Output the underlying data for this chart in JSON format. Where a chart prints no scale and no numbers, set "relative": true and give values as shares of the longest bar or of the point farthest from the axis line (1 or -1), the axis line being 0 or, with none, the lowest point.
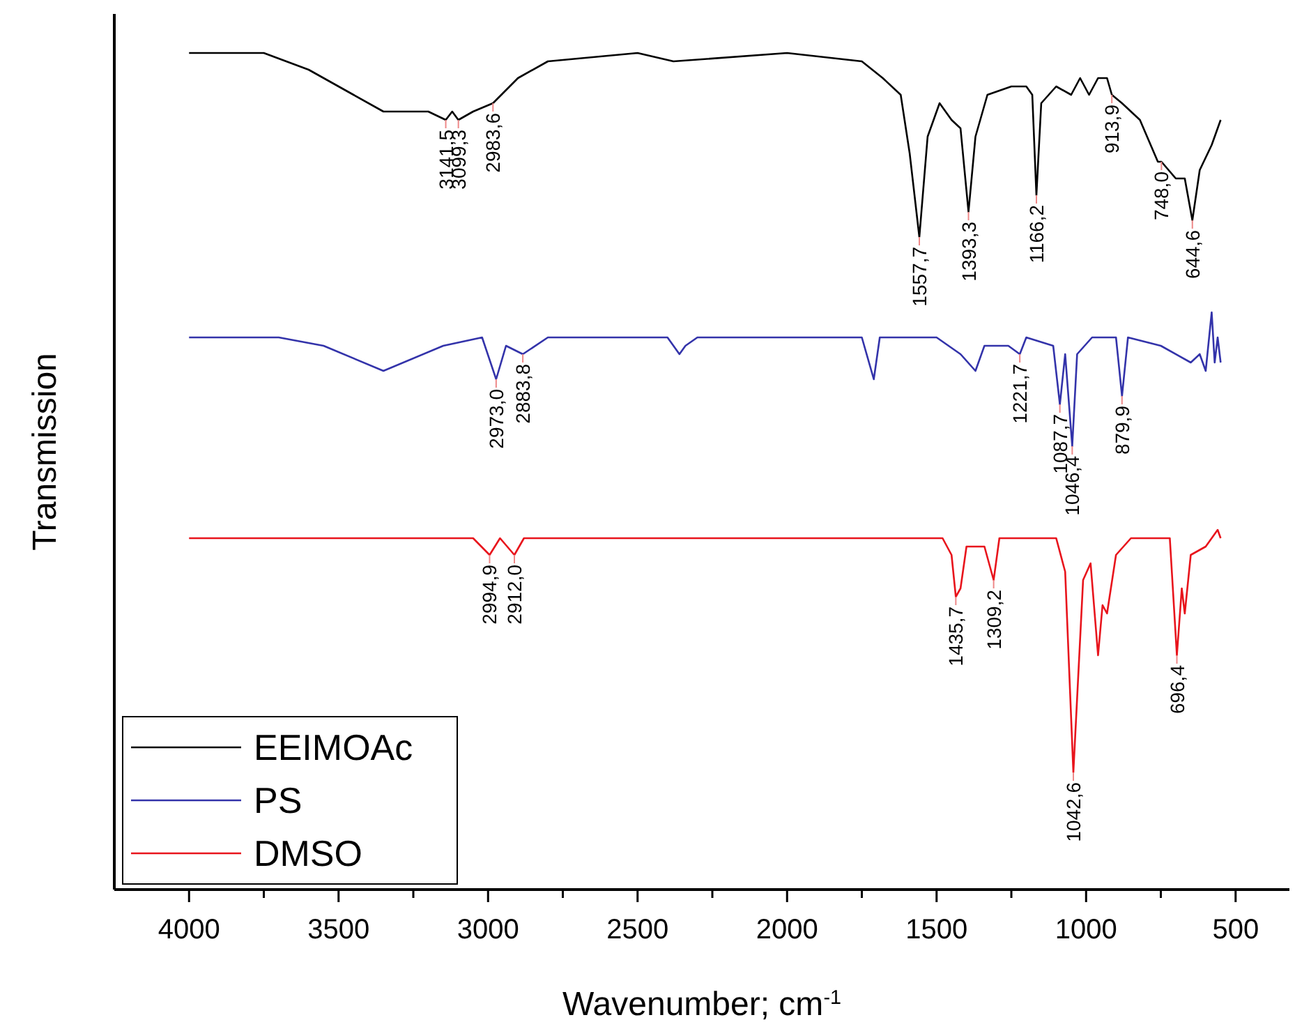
{
  "chart_data": {
    "type": "line",
    "relative": true,
    "xlabel": "Wavenumber; cm$^{-1}$",
    "ylabel": "Transmission",
    "xlim": [
      4250,
      320
    ],
    "xticks": [
      4000,
      {
        "value": 3750,
        "label": null
      },
      3500,
      {
        "value": 3250,
        "label": null
      },
      3000,
      {
        "value": 2750,
        "label": null
      },
      2500,
      {
        "value": 2250,
        "label": null
      },
      2000,
      {
        "value": 1750,
        "label": null
      },
      1500,
      {
        "value": 1250,
        "label": null
      },
      1000,
      {
        "value": 750,
        "label": null
      },
      500
    ],
    "grid": false,
    "legend": "bottom left",
    "tick_labels": "x",
    "series": [
      {
        "name": "EEIMOAc",
        "color": "#000000",
        "x": [
          4000,
          3750,
          3600,
          3450,
          3350,
          3200,
          3141.5,
          3120,
          3099.3,
          3050,
          2983.6,
          2900,
          2800,
          2500,
          2380,
          2000,
          1750,
          1680,
          1620,
          1590,
          1557.7,
          1530,
          1490,
          1450,
          1420,
          1393.3,
          1370,
          1330,
          1250,
          1200,
          1180,
          1166.2,
          1150,
          1100,
          1050,
          1020,
          990,
          960,
          930,
          913.9,
          880,
          820,
          760,
          748,
          700,
          670,
          644.6,
          620,
          580,
          550
        ],
        "values": [
          1.0,
          1.0,
          0.98,
          0.95,
          0.93,
          0.93,
          0.92,
          0.93,
          0.92,
          0.93,
          0.94,
          0.97,
          0.99,
          1.0,
          0.99,
          1.0,
          0.99,
          0.97,
          0.95,
          0.88,
          0.78,
          0.9,
          0.94,
          0.92,
          0.91,
          0.81,
          0.9,
          0.95,
          0.96,
          0.96,
          0.95,
          0.83,
          0.94,
          0.96,
          0.95,
          0.97,
          0.95,
          0.97,
          0.97,
          0.95,
          0.94,
          0.92,
          0.87,
          0.87,
          0.85,
          0.85,
          0.8,
          0.86,
          0.89,
          0.92
        ]
      },
      {
        "name": "PS",
        "color": "#3333aa",
        "x": [
          4000,
          3700,
          3550,
          3350,
          3150,
          3020,
          2973,
          2940,
          2883.8,
          2800,
          2400,
          2360,
          2340,
          2300,
          1750,
          1710,
          1690,
          1500,
          1420,
          1370,
          1340,
          1260,
          1221.7,
          1200,
          1110,
          1087.7,
          1070,
          1046.4,
          1030,
          980,
          900,
          879.9,
          860,
          750,
          650,
          620,
          600,
          580,
          570,
          560,
          550
        ],
        "values": [
          0.66,
          0.66,
          0.65,
          0.62,
          0.65,
          0.66,
          0.61,
          0.65,
          0.64,
          0.66,
          0.66,
          0.64,
          0.65,
          0.66,
          0.66,
          0.61,
          0.66,
          0.66,
          0.64,
          0.62,
          0.65,
          0.65,
          0.64,
          0.66,
          0.65,
          0.58,
          0.64,
          0.53,
          0.64,
          0.66,
          0.66,
          0.59,
          0.66,
          0.65,
          0.63,
          0.64,
          0.62,
          0.69,
          0.63,
          0.66,
          0.63
        ]
      },
      {
        "name": "DMSO",
        "color": "#e8141c",
        "x": [
          4000,
          3050,
          2994.9,
          2960,
          2912,
          2880,
          1480,
          1450,
          1435.7,
          1420,
          1400,
          1340,
          1309.2,
          1290,
          1100,
          1070,
          1042.6,
          1010,
          985,
          960,
          945,
          930,
          900,
          850,
          720,
          696.4,
          680,
          670,
          650,
          600,
          560,
          550
        ],
        "values": [
          0.42,
          0.42,
          0.4,
          0.42,
          0.4,
          0.42,
          0.42,
          0.4,
          0.35,
          0.36,
          0.41,
          0.41,
          0.37,
          0.42,
          0.42,
          0.38,
          0.14,
          0.37,
          0.39,
          0.28,
          0.34,
          0.33,
          0.4,
          0.42,
          0.42,
          0.28,
          0.36,
          0.33,
          0.4,
          0.41,
          0.43,
          0.42
        ]
      }
    ],
    "annotations": [
      {
        "text": "3141,5",
        "x": 3141.5,
        "y": 0.92
      },
      {
        "text": "3099,3",
        "x": 3099.3,
        "y": 0.92
      },
      {
        "text": "2983,6",
        "x": 2983.6,
        "y": 0.94
      },
      {
        "text": "1557,7",
        "x": 1557.7,
        "y": 0.78
      },
      {
        "text": "1393,3",
        "x": 1393.3,
        "y": 0.81
      },
      {
        "text": "1166,2",
        "x": 1166.2,
        "y": 0.83
      },
      {
        "text": "913,9",
        "x": 913.9,
        "y": 0.95
      },
      {
        "text": "748,0",
        "x": 748,
        "y": 0.87
      },
      {
        "text": "644,6",
        "x": 644.6,
        "y": 0.8
      },
      {
        "text": "2973,0",
        "x": 2973,
        "y": 0.61
      },
      {
        "text": "2883,8",
        "x": 2883.8,
        "y": 0.64
      },
      {
        "text": "1221,7",
        "x": 1221.7,
        "y": 0.64
      },
      {
        "text": "1087,7",
        "x": 1087.7,
        "y": 0.58
      },
      {
        "text": "1046,4",
        "x": 1046.4,
        "y": 0.53
      },
      {
        "text": "879,9",
        "x": 879.9,
        "y": 0.59
      },
      {
        "text": "2994,9",
        "x": 2994.9,
        "y": 0.4
      },
      {
        "text": "2912,0",
        "x": 2912,
        "y": 0.4
      },
      {
        "text": "1435,7",
        "x": 1435.7,
        "y": 0.35
      },
      {
        "text": "1309,2",
        "x": 1309.2,
        "y": 0.37
      },
      {
        "text": "1042,6",
        "x": 1042.6,
        "y": 0.14
      },
      {
        "text": "696,4",
        "x": 696.4,
        "y": 0.28
      }
    ]
  }
}
